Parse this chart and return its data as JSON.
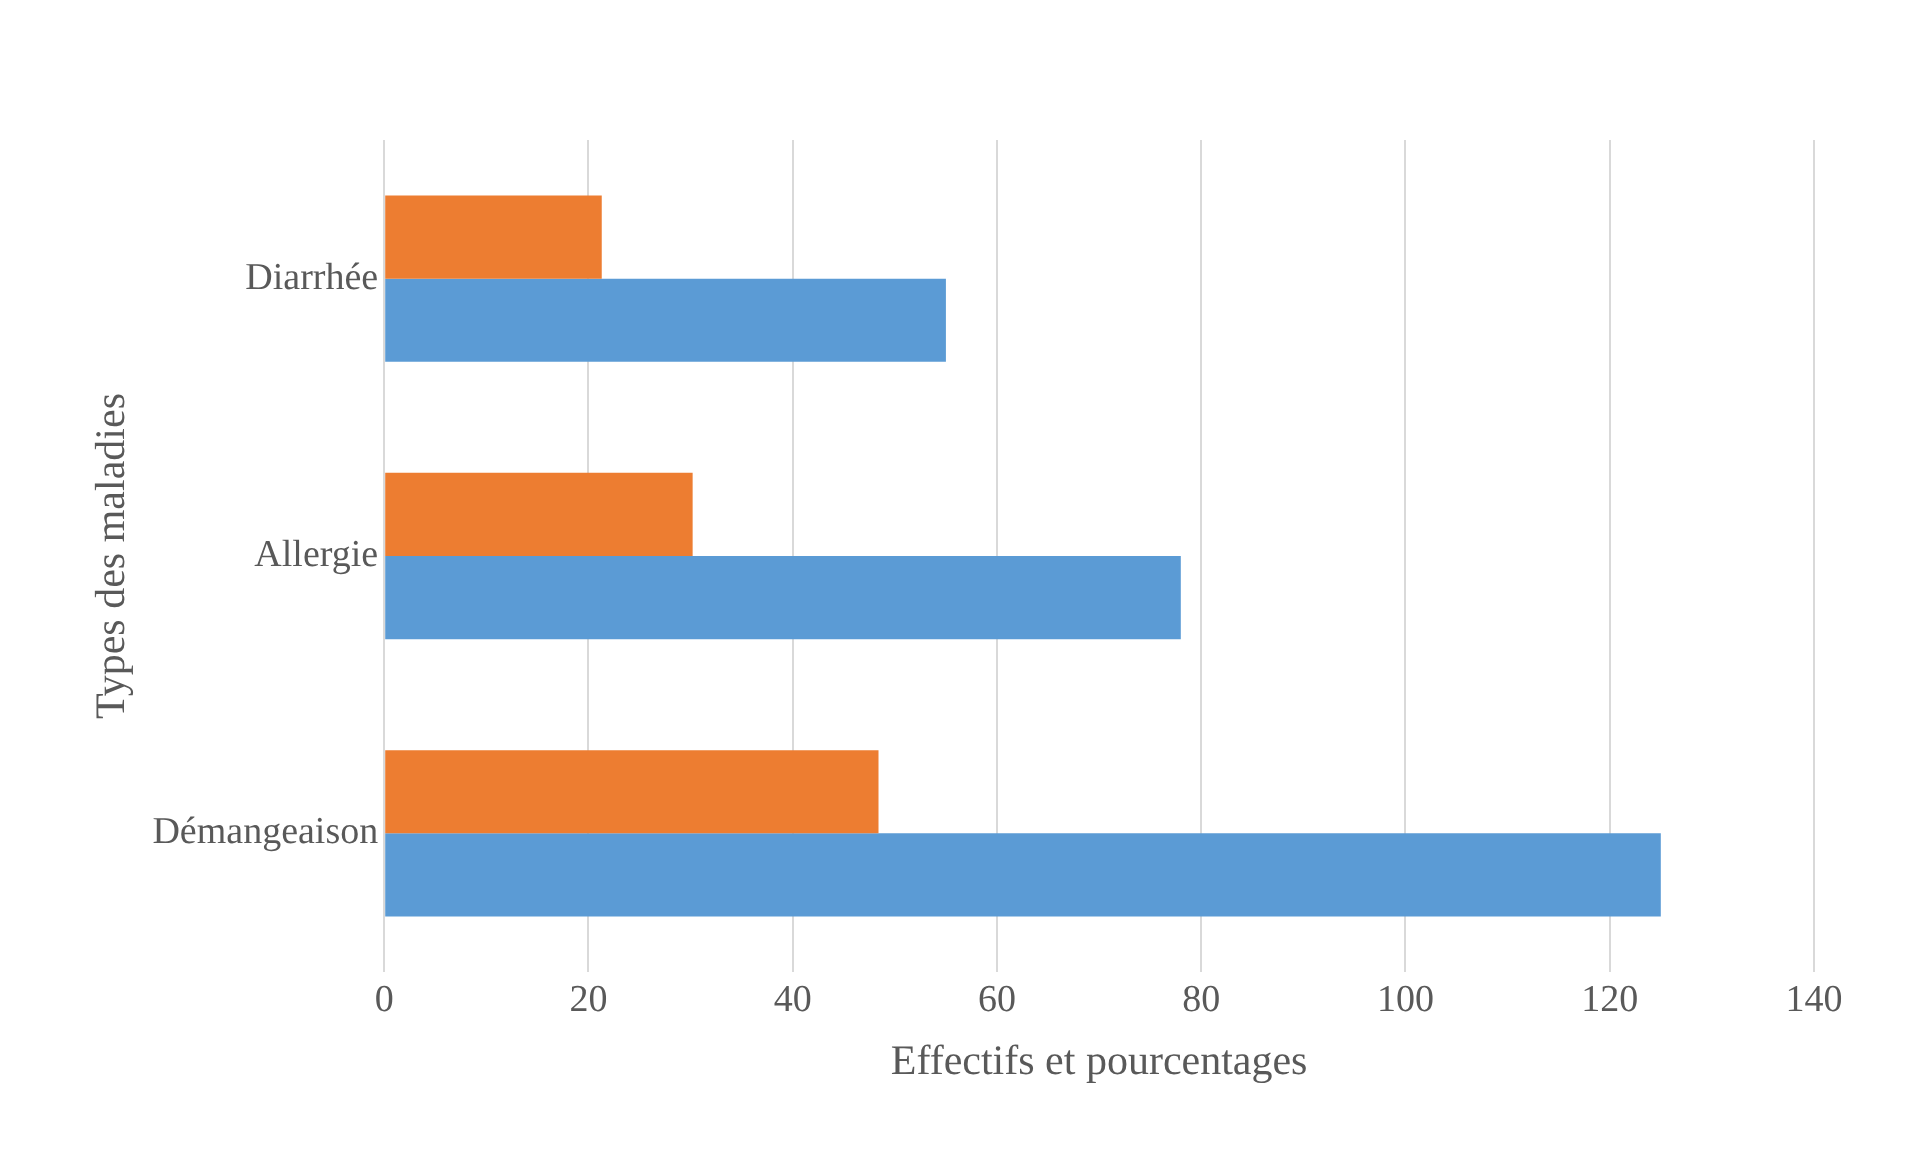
{
  "chart_data": {
    "type": "bar",
    "orientation": "horizontal",
    "xlabel": "Effectifs et pourcentages",
    "ylabel": "Types des maladies",
    "categories": [
      "Diarrhée",
      "Allergie",
      "Démangeaison"
    ],
    "series": [
      {
        "color": "#ed7d31",
        "values": [
          21.3,
          30.2,
          48.4
        ]
      },
      {
        "color": "#5b9bd5",
        "values": [
          55,
          78,
          125
        ]
      }
    ],
    "xlim": [
      0,
      140
    ],
    "xticks": [
      0,
      20,
      40,
      60,
      80,
      100,
      120,
      140
    ],
    "grid": "x",
    "legend": false
  }
}
